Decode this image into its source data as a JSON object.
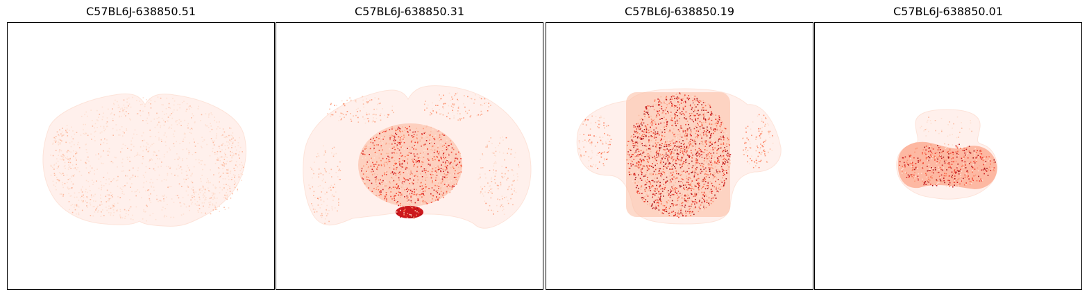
{
  "figure": {
    "panels": [
      {
        "title": "C57BL6J-638850.51",
        "intensity": 0.25
      },
      {
        "title": "C57BL6J-638850.31",
        "intensity": 0.55
      },
      {
        "title": "C57BL6J-638850.19",
        "intensity": 0.8
      },
      {
        "title": "C57BL6J-638850.01",
        "intensity": 0.7
      }
    ],
    "colormap": {
      "name": "Reds",
      "low": "#fff0ec",
      "mid": "#fb6a4a",
      "high": "#a50f15"
    }
  }
}
